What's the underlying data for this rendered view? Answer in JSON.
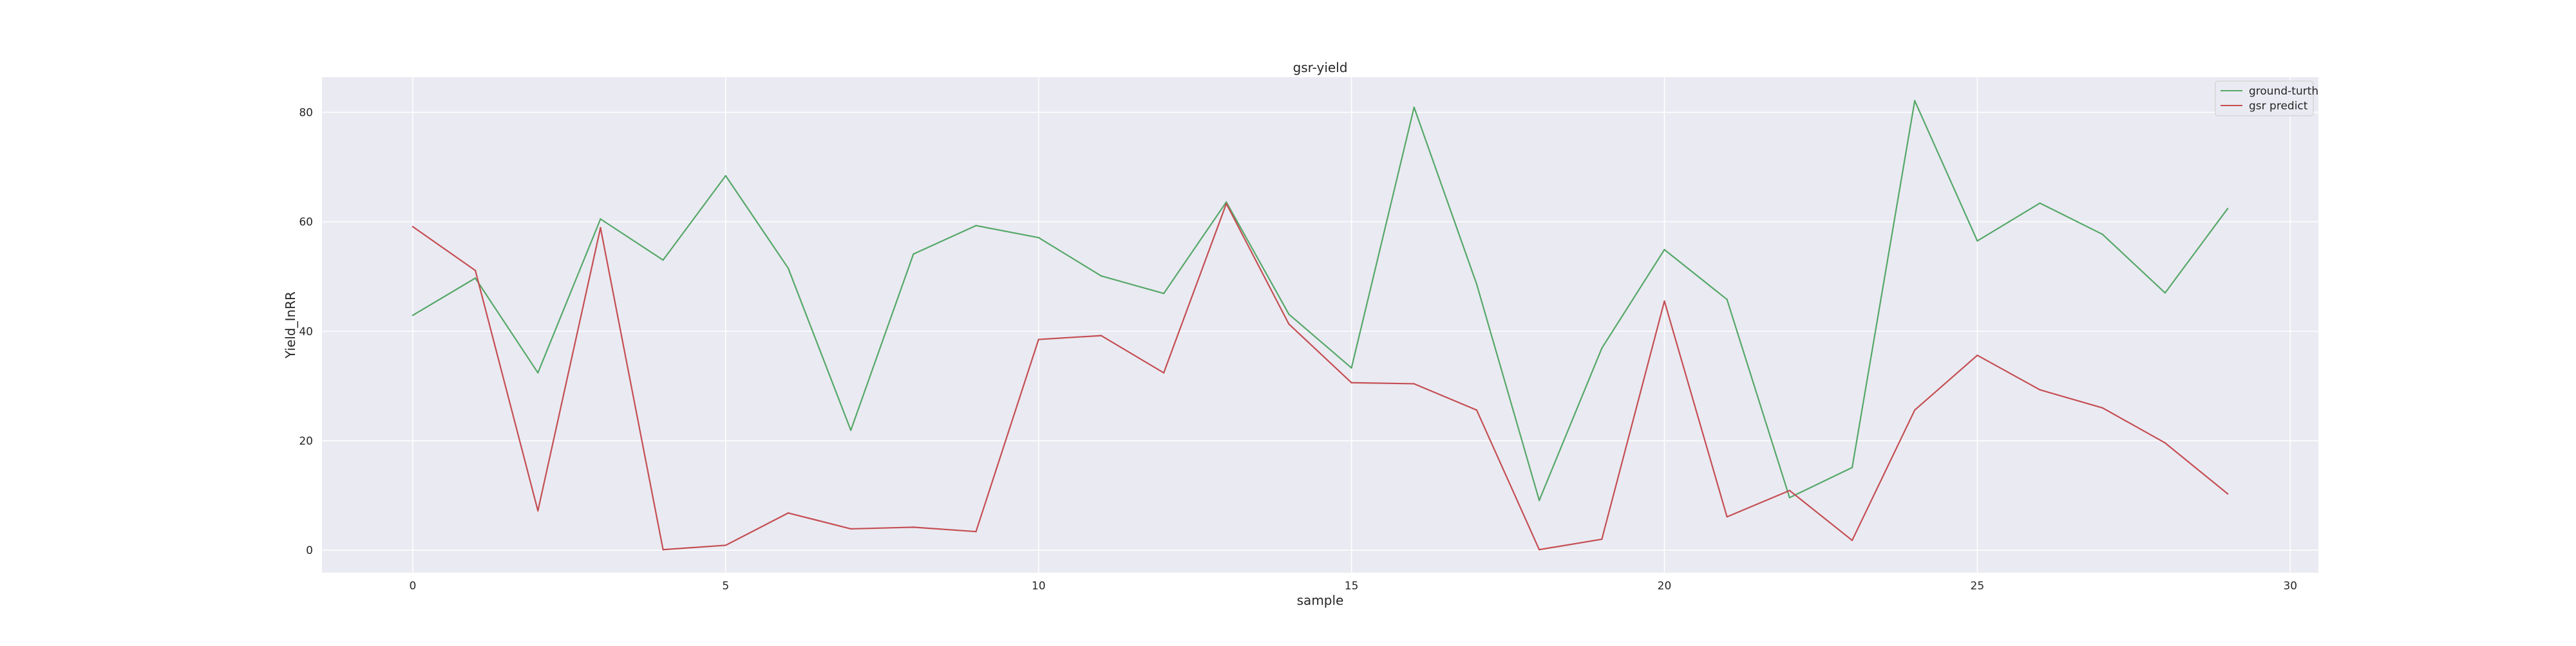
{
  "chart_data": {
    "type": "line",
    "title": "gsr-yield",
    "xlabel": "sample",
    "ylabel": "Yield_InRR",
    "x": [
      0,
      1,
      2,
      3,
      4,
      5,
      6,
      7,
      8,
      9,
      10,
      11,
      12,
      13,
      14,
      15,
      16,
      17,
      18,
      19,
      20,
      21,
      22,
      23,
      24,
      25,
      26,
      27,
      28,
      29
    ],
    "xlim": [
      -1.45,
      30.45
    ],
    "ylim": [
      -4.1,
      86.4
    ],
    "xticks": [
      0,
      5,
      10,
      15,
      20,
      25,
      30
    ],
    "yticks": [
      0,
      20,
      40,
      60,
      80
    ],
    "grid": true,
    "legend": "top-right",
    "background": "#eaeaf2",
    "series": [
      {
        "name": "ground-turth",
        "color": "#55a868",
        "values": [
          42.9,
          49.7,
          32.4,
          60.5,
          53.0,
          68.4,
          51.5,
          21.9,
          54.1,
          59.3,
          57.1,
          50.1,
          46.9,
          63.6,
          43.1,
          33.3,
          80.9,
          48.6,
          9.1,
          36.9,
          54.9,
          45.8,
          9.6,
          15.1,
          82.1,
          56.5,
          63.4,
          57.7,
          47.0,
          62.4
        ]
      },
      {
        "name": "gsr predict",
        "color": "#c44e52",
        "values": [
          59.1,
          51.1,
          7.2,
          58.9,
          0.1,
          0.9,
          6.8,
          3.9,
          4.2,
          3.4,
          38.5,
          39.2,
          32.4,
          63.3,
          41.3,
          30.6,
          30.4,
          25.6,
          0.1,
          2.0,
          45.5,
          6.1,
          10.9,
          1.8,
          25.6,
          35.6,
          29.3,
          26.0,
          19.6,
          10.3
        ]
      }
    ]
  }
}
